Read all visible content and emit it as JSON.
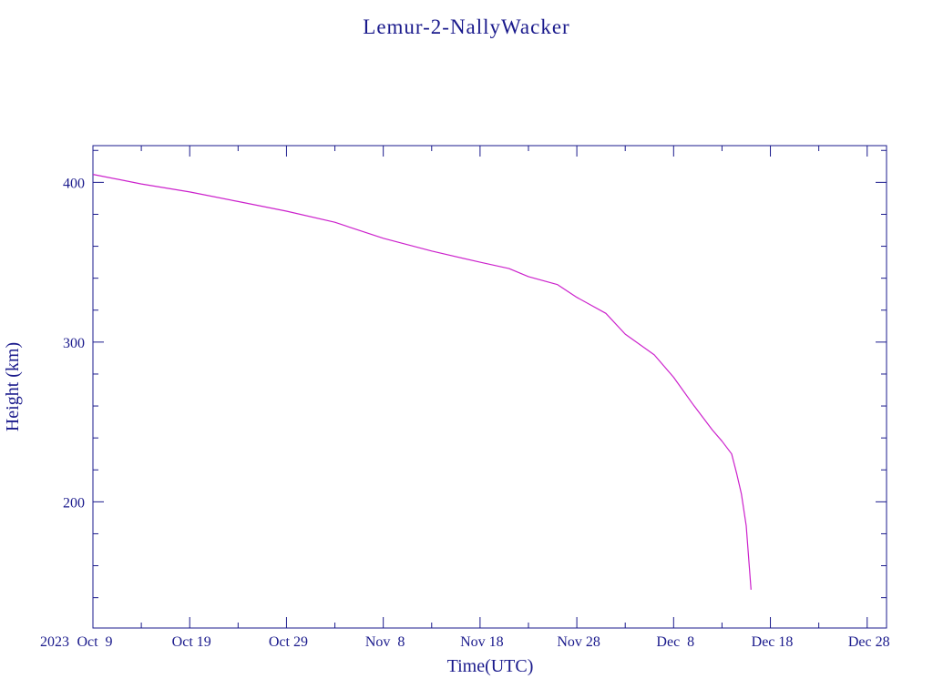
{
  "chart_data": {
    "type": "line",
    "title": "Lemur-2-NallyWacker",
    "xlabel": "Time(UTC)",
    "ylabel": "Height (km)",
    "x_start_label": "2023",
    "x_range": [
      "2023-10-09",
      "2023-12-30"
    ],
    "y_range": [
      121,
      423
    ],
    "x_ticks": [
      {
        "date": "2023-10-09",
        "label": "Oct  9"
      },
      {
        "date": "2023-10-19",
        "label": "Oct 19"
      },
      {
        "date": "2023-10-29",
        "label": "Oct 29"
      },
      {
        "date": "2023-11-08",
        "label": "Nov  8"
      },
      {
        "date": "2023-11-18",
        "label": "Nov 18"
      },
      {
        "date": "2023-11-28",
        "label": "Nov 28"
      },
      {
        "date": "2023-12-08",
        "label": "Dec  8"
      },
      {
        "date": "2023-12-18",
        "label": "Dec 18"
      },
      {
        "date": "2023-12-28",
        "label": "Dec 28"
      }
    ],
    "y_ticks": [
      {
        "value": 200,
        "label": "200"
      },
      {
        "value": 300,
        "label": "300"
      },
      {
        "value": 400,
        "label": "400"
      }
    ],
    "grid": false,
    "colors": {
      "axis": "#1a1a8c",
      "text": "#1a1a8c",
      "series": "#cc22cc"
    },
    "series": [
      {
        "x": [
          "2023-10-09",
          "2023-10-14",
          "2023-10-19",
          "2023-10-24",
          "2023-10-29",
          "2023-11-03",
          "2023-11-05",
          "2023-11-08",
          "2023-11-13",
          "2023-11-18",
          "2023-11-21",
          "2023-11-23",
          "2023-11-26",
          "2023-11-28",
          "2023-12-01",
          "2023-12-03",
          "2023-12-06",
          "2023-12-08",
          "2023-12-10",
          "2023-12-12",
          "2023-12-13",
          "2023-12-14",
          "2023-12-14T12:00",
          "2023-12-15",
          "2023-12-15T12:00",
          "2023-12-16"
        ],
        "y": [
          405,
          399,
          394,
          388,
          382,
          375,
          371,
          365,
          357,
          350,
          346,
          341,
          336,
          328,
          318,
          305,
          292,
          278,
          261,
          245,
          238,
          230,
          218,
          205,
          185,
          145
        ]
      }
    ]
  }
}
